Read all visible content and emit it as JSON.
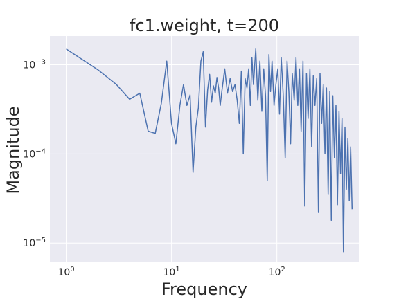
{
  "chart_data": {
    "type": "line",
    "title": "fc1.weight, t=200",
    "xlabel": "Frequency",
    "ylabel": "Magnitude",
    "x_scale": "log",
    "y_scale": "log",
    "xlim": [
      0.7,
      600
    ],
    "ylim": [
      6.2e-06,
      0.0021
    ],
    "x_ticks": [
      {
        "base": "10",
        "exp": "0",
        "value": 1
      },
      {
        "base": "10",
        "exp": "1",
        "value": 10
      },
      {
        "base": "10",
        "exp": "2",
        "value": 100
      }
    ],
    "y_ticks": [
      {
        "base": "10",
        "exp": "−3",
        "value": 0.001
      },
      {
        "base": "10",
        "exp": "−4",
        "value": 0.0001
      },
      {
        "base": "10",
        "exp": "−5",
        "value": 1e-05
      }
    ],
    "grid": true,
    "line_color": "#4c72b0",
    "background": "#eaeaf2",
    "series": [
      {
        "x": [
          1,
          2,
          3,
          4,
          5,
          6,
          7,
          8,
          9,
          10,
          11,
          12,
          13,
          14,
          15,
          16,
          17,
          18,
          19,
          20,
          21,
          22,
          23,
          24,
          25,
          26,
          27,
          28,
          29,
          30,
          32,
          34,
          36,
          38,
          40,
          42,
          44,
          46,
          48,
          50,
          52,
          54,
          56,
          58,
          60,
          63,
          66,
          69,
          72,
          75,
          78,
          81,
          84,
          87,
          90,
          94,
          98,
          102,
          106,
          110,
          115,
          120,
          125,
          130,
          135,
          140,
          146,
          152,
          158,
          164,
          170,
          177,
          184,
          191,
          198,
          206,
          214,
          222,
          230,
          239,
          248,
          257,
          266,
          276,
          286,
          296,
          307,
          318,
          329,
          340,
          352,
          364,
          376,
          389,
          402,
          415,
          429,
          443,
          457,
          472,
          487,
          502,
          518
        ],
        "values": [
          0.0015,
          0.00088,
          0.0006,
          0.00041,
          0.00048,
          0.00018,
          0.00017,
          0.00037,
          0.0011,
          0.00022,
          0.00013,
          0.00035,
          0.0006,
          0.00035,
          0.00046,
          6.2e-05,
          0.0002,
          0.00033,
          0.0011,
          0.0014,
          0.0002,
          0.00052,
          0.00078,
          0.00038,
          0.00058,
          0.00048,
          0.00072,
          0.00055,
          0.00035,
          0.0005,
          0.0009,
          0.00048,
          0.0007,
          0.0005,
          0.0006,
          0.0004,
          0.00022,
          0.00085,
          0.0001,
          0.0007,
          0.00055,
          0.0009,
          0.00035,
          0.0012,
          0.0006,
          0.0015,
          0.0004,
          0.0011,
          0.0003,
          0.0009,
          0.00045,
          5e-05,
          0.0013,
          0.0005,
          0.0011,
          0.00035,
          0.0006,
          0.0009,
          0.00028,
          0.0012,
          0.00045,
          9e-05,
          0.0011,
          0.0005,
          0.00013,
          0.0008,
          0.0004,
          0.0012,
          0.00035,
          0.0009,
          0.00018,
          0.0011,
          2.6e-05,
          0.0008,
          0.00025,
          0.0009,
          0.00012,
          0.00075,
          0.00035,
          0.0007,
          2.2e-05,
          0.0008,
          0.00022,
          0.0006,
          0.0001,
          0.00055,
          3.5e-05,
          0.0005,
          1.8e-05,
          0.00045,
          9e-05,
          0.00035,
          2.7e-05,
          0.0003,
          6e-05,
          0.00025,
          8e-06,
          0.0002,
          4e-05,
          0.00015,
          3e-05,
          0.00012,
          2.4e-05
        ]
      }
    ]
  }
}
